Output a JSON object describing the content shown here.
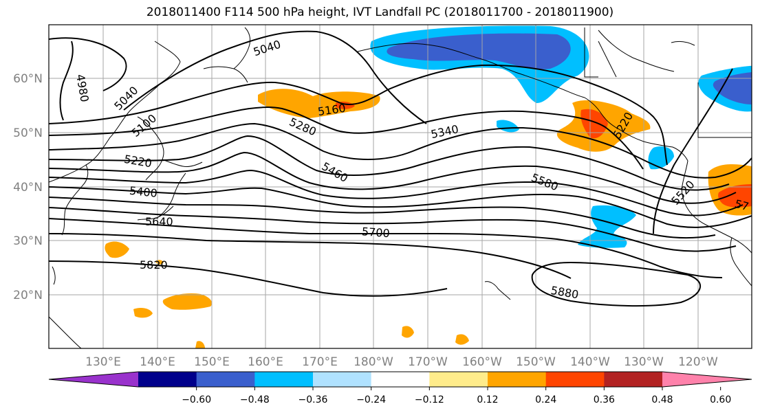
{
  "title": "2018011400 F114 500 hPa height, IVT Landfall PC (2018011700 - 2018011900)",
  "lat_labels": [
    "60°N",
    "50°N",
    "40°N",
    "30°N",
    "20°N"
  ],
  "lon_labels": [
    "130°E",
    "140°E",
    "150°E",
    "160°E",
    "170°E",
    "180°W",
    "170°W",
    "160°W",
    "150°W",
    "140°W",
    "130°W",
    "120°W"
  ],
  "contour_labels": [
    "5040",
    "4980",
    "5040",
    "5100",
    "5160",
    "5220",
    "5280",
    "5340",
    "5400",
    "5460",
    "5580",
    "5520",
    "5640",
    "5700",
    "5820",
    "5880",
    "5220",
    "57"
  ],
  "colorbar": {
    "colors": [
      "#9932cc",
      "#00008b",
      "#3a5fcd",
      "#00bfff",
      "#b0e2ff",
      "#ffffff",
      "#ffec8b",
      "#ffa500",
      "#ff4500",
      "#b22222",
      "#ff82ab"
    ],
    "tick_labels": [
      "−0.60",
      "−0.48",
      "−0.36",
      "−0.24",
      "−0.12",
      "0.12",
      "0.24",
      "0.36",
      "0.48",
      "0.60"
    ]
  }
}
